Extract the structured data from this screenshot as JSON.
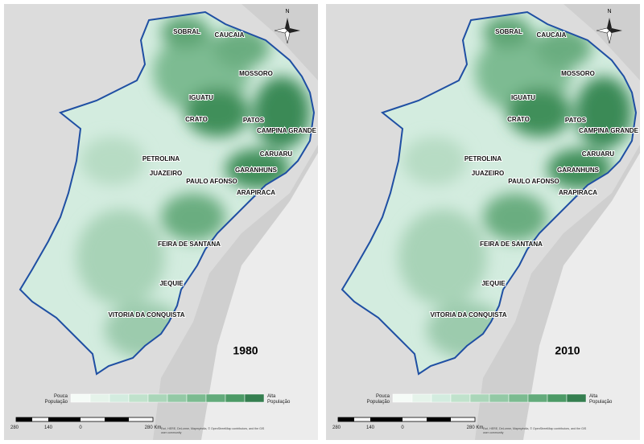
{
  "panels": [
    {
      "year": "1980",
      "cities": [
        "SOBRAL",
        "CAUCAIA",
        "MOSSORO",
        "IGUATU",
        "CRATO",
        "PATOS",
        "CAMPINA GRANDE",
        "CARUARU",
        "PETROLINA",
        "JUAZEIRO",
        "GARANHUNS",
        "PAULO AFONSO",
        "ARAPIRACA",
        "FEIRA DE SANTANA",
        "JEQUIE",
        "VITORIA DA CONQUISTA"
      ]
    },
    {
      "year": "2010",
      "cities": [
        "SOBRAL",
        "CAUCAIA",
        "MOSSORO",
        "IGUATU",
        "CRATO",
        "PATOS",
        "CAMPINA GRANDE",
        "CARUARU",
        "PETROLINA",
        "JUAZEIRO",
        "GARANHUNS",
        "PAULO AFONSO",
        "ARAPIRACA",
        "FEIRA DE SANTANA",
        "JEQUIE",
        "VITORIA DA CONQUISTA"
      ]
    }
  ],
  "north": "N",
  "legend": {
    "low": [
      "Pouca",
      "População"
    ],
    "high": [
      "Alta",
      "População"
    ]
  },
  "scale": [
    "280",
    "140",
    "0",
    "280 Km"
  ],
  "attribution": [
    "Esri, HERE, DeLorme, Mapmyindia, © OpenStreetMap contributors, and the GIS",
    "user community"
  ]
}
